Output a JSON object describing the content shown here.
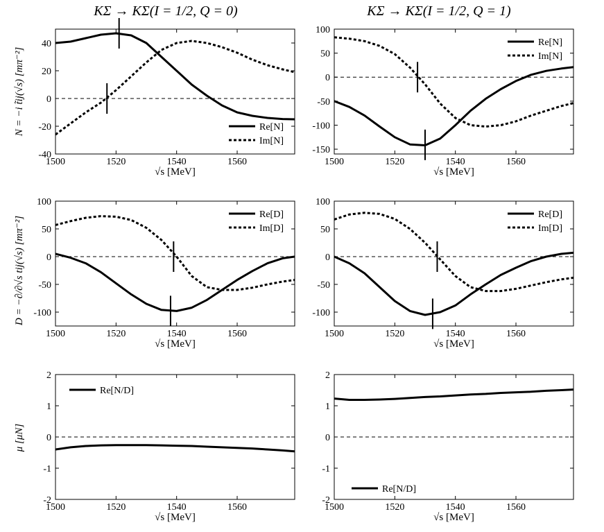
{
  "figure": {
    "col_titles": [
      "KΣ → KΣ(I = 1/2, Q = 0)",
      "KΣ → KΣ(I = 1/2, Q = 1)"
    ],
    "row_ylabels": [
      "N = −i t̃ij(√s) [mπ⁻²]",
      "D = −∂/∂√s tij(√s) [mπ⁻²]",
      "μ [μN]"
    ],
    "colors": {
      "line": "#000000",
      "background": "#ffffff"
    }
  },
  "chart_data": [
    {
      "id": "N-Q0",
      "row": 0,
      "col": 0,
      "type": "line",
      "xlabel": "√s [MeV]",
      "ylabel": "N = −i t̃ij(√s) [mπ⁻²]",
      "xlim": [
        1500,
        1579
      ],
      "ylim": [
        -40,
        50
      ],
      "xticks": [
        1500,
        1520,
        1540,
        1560
      ],
      "yticks": [
        -40,
        -20,
        0,
        20,
        40
      ],
      "zero_line": true,
      "legend": "bottom-right",
      "series": [
        {
          "name": "Re[N]",
          "style": "solid",
          "x": [
            1500,
            1505,
            1510,
            1515,
            1520,
            1525,
            1530,
            1535,
            1540,
            1545,
            1550,
            1555,
            1560,
            1565,
            1570,
            1575,
            1579
          ],
          "y": [
            40,
            41,
            43.5,
            46,
            47,
            45.5,
            40,
            30,
            20,
            10,
            2,
            -5,
            -10,
            -12.5,
            -14,
            -14.8,
            -15
          ]
        },
        {
          "name": "Im[N]",
          "style": "dotted",
          "x": [
            1500,
            1505,
            1510,
            1515,
            1520,
            1525,
            1530,
            1535,
            1540,
            1545,
            1550,
            1555,
            1560,
            1565,
            1570,
            1575,
            1579
          ],
          "y": [
            -26,
            -18,
            -10,
            -3,
            6,
            16,
            26,
            35,
            40,
            41.5,
            40,
            37,
            33,
            28,
            24,
            21,
            19
          ]
        }
      ],
      "markers": [
        {
          "x": 1521,
          "y": 47
        },
        {
          "x": 1517,
          "y": 0
        }
      ]
    },
    {
      "id": "N-Q1",
      "row": 0,
      "col": 1,
      "type": "line",
      "xlabel": "√s [MeV]",
      "ylabel": "",
      "xlim": [
        1500,
        1579
      ],
      "ylim": [
        -160,
        100
      ],
      "xticks": [
        1500,
        1520,
        1540,
        1560
      ],
      "yticks": [
        -150,
        -100,
        -50,
        0,
        50,
        100
      ],
      "zero_line": true,
      "legend": "top-right",
      "series": [
        {
          "name": "Re[N]",
          "style": "solid",
          "x": [
            1500,
            1505,
            1510,
            1515,
            1520,
            1525,
            1530,
            1535,
            1540,
            1545,
            1550,
            1555,
            1560,
            1565,
            1570,
            1575,
            1579
          ],
          "y": [
            -50,
            -62,
            -80,
            -103,
            -125,
            -140,
            -142,
            -128,
            -100,
            -70,
            -45,
            -25,
            -8,
            5,
            13,
            18,
            21
          ]
        },
        {
          "name": "Im[N]",
          "style": "dotted",
          "x": [
            1500,
            1505,
            1510,
            1515,
            1520,
            1525,
            1530,
            1535,
            1540,
            1545,
            1550,
            1555,
            1560,
            1565,
            1570,
            1575,
            1579
          ],
          "y": [
            83,
            80,
            75,
            65,
            48,
            20,
            -15,
            -55,
            -85,
            -100,
            -103,
            -100,
            -92,
            -80,
            -70,
            -60,
            -54
          ]
        }
      ],
      "markers": [
        {
          "x": 1527.5,
          "y": 0
        },
        {
          "x": 1530,
          "y": -141
        }
      ]
    },
    {
      "id": "D-Q0",
      "row": 1,
      "col": 0,
      "type": "line",
      "xlabel": "√s [MeV]",
      "ylabel": "D = −∂/∂√s tij(√s) [mπ⁻²]",
      "xlim": [
        1500,
        1579
      ],
      "ylim": [
        -125,
        100
      ],
      "xticks": [
        1500,
        1520,
        1540,
        1560
      ],
      "yticks": [
        -100,
        -50,
        0,
        50,
        100
      ],
      "zero_line": true,
      "legend": "top-right",
      "series": [
        {
          "name": "Re[D]",
          "style": "solid",
          "x": [
            1500,
            1505,
            1510,
            1515,
            1520,
            1525,
            1530,
            1535,
            1540,
            1545,
            1550,
            1555,
            1560,
            1565,
            1570,
            1575,
            1579
          ],
          "y": [
            5,
            -2,
            -12,
            -28,
            -48,
            -68,
            -85,
            -96,
            -98,
            -92,
            -78,
            -60,
            -42,
            -26,
            -12,
            -3,
            0
          ]
        },
        {
          "name": "Im[D]",
          "style": "dotted",
          "x": [
            1500,
            1505,
            1510,
            1515,
            1520,
            1525,
            1530,
            1535,
            1540,
            1545,
            1550,
            1555,
            1560,
            1565,
            1570,
            1575,
            1579
          ],
          "y": [
            57,
            64,
            70,
            73,
            72,
            66,
            52,
            30,
            0,
            -35,
            -55,
            -60,
            -60,
            -56,
            -50,
            -45,
            -42
          ]
        }
      ],
      "markers": [
        {
          "x": 1539,
          "y": 0
        },
        {
          "x": 1538,
          "y": -98
        }
      ]
    },
    {
      "id": "D-Q1",
      "row": 1,
      "col": 1,
      "type": "line",
      "xlabel": "√s [MeV]",
      "ylabel": "",
      "xlim": [
        1500,
        1579
      ],
      "ylim": [
        -125,
        100
      ],
      "xticks": [
        1500,
        1520,
        1540,
        1560
      ],
      "yticks": [
        -100,
        -50,
        0,
        50,
        100
      ],
      "zero_line": true,
      "legend": "top-right",
      "series": [
        {
          "name": "Re[D]",
          "style": "solid",
          "x": [
            1500,
            1505,
            1510,
            1515,
            1520,
            1525,
            1530,
            1535,
            1540,
            1545,
            1550,
            1555,
            1560,
            1565,
            1570,
            1575,
            1579
          ],
          "y": [
            0,
            -12,
            -30,
            -55,
            -80,
            -98,
            -105,
            -100,
            -88,
            -68,
            -50,
            -33,
            -20,
            -8,
            0,
            5,
            7
          ]
        },
        {
          "name": "Im[D]",
          "style": "dotted",
          "x": [
            1500,
            1505,
            1510,
            1515,
            1520,
            1525,
            1530,
            1535,
            1540,
            1545,
            1550,
            1555,
            1560,
            1565,
            1570,
            1575,
            1579
          ],
          "y": [
            67,
            76,
            79,
            77,
            68,
            50,
            25,
            -5,
            -35,
            -55,
            -62,
            -62,
            -58,
            -52,
            -46,
            -41,
            -38
          ]
        }
      ],
      "markers": [
        {
          "x": 1534,
          "y": 0
        },
        {
          "x": 1532.5,
          "y": -103
        }
      ]
    },
    {
      "id": "mu-Q0",
      "row": 2,
      "col": 0,
      "type": "line",
      "xlabel": "√s [MeV]",
      "ylabel": "μ [μN]",
      "xlim": [
        1500,
        1579
      ],
      "ylim": [
        -2,
        2
      ],
      "xticks": [
        1500,
        1520,
        1540,
        1560
      ],
      "yticks": [
        -2,
        -1,
        0,
        1,
        2
      ],
      "zero_line": true,
      "legend": "top-left",
      "series": [
        {
          "name": "Re[N/D]",
          "style": "solid",
          "x": [
            1500,
            1505,
            1510,
            1515,
            1520,
            1525,
            1530,
            1535,
            1540,
            1545,
            1550,
            1555,
            1560,
            1565,
            1570,
            1575,
            1579
          ],
          "y": [
            -0.4,
            -0.33,
            -0.29,
            -0.27,
            -0.26,
            -0.26,
            -0.26,
            -0.27,
            -0.28,
            -0.29,
            -0.31,
            -0.33,
            -0.35,
            -0.37,
            -0.4,
            -0.43,
            -0.46
          ]
        }
      ],
      "markers": []
    },
    {
      "id": "mu-Q1",
      "row": 2,
      "col": 1,
      "type": "line",
      "xlabel": "√s [MeV]",
      "ylabel": "",
      "xlim": [
        1500,
        1579
      ],
      "ylim": [
        -2,
        2
      ],
      "xticks": [
        1500,
        1520,
        1540,
        1560
      ],
      "yticks": [
        -2,
        -1,
        0,
        1,
        2
      ],
      "zero_line": true,
      "legend": "bottom-left",
      "series": [
        {
          "name": "Re[N/D]",
          "style": "solid",
          "x": [
            1500,
            1505,
            1510,
            1515,
            1520,
            1525,
            1530,
            1535,
            1540,
            1545,
            1550,
            1555,
            1560,
            1565,
            1570,
            1575,
            1579
          ],
          "y": [
            1.23,
            1.19,
            1.19,
            1.2,
            1.22,
            1.25,
            1.28,
            1.3,
            1.33,
            1.36,
            1.38,
            1.41,
            1.43,
            1.45,
            1.48,
            1.5,
            1.52
          ]
        }
      ],
      "markers": []
    }
  ]
}
